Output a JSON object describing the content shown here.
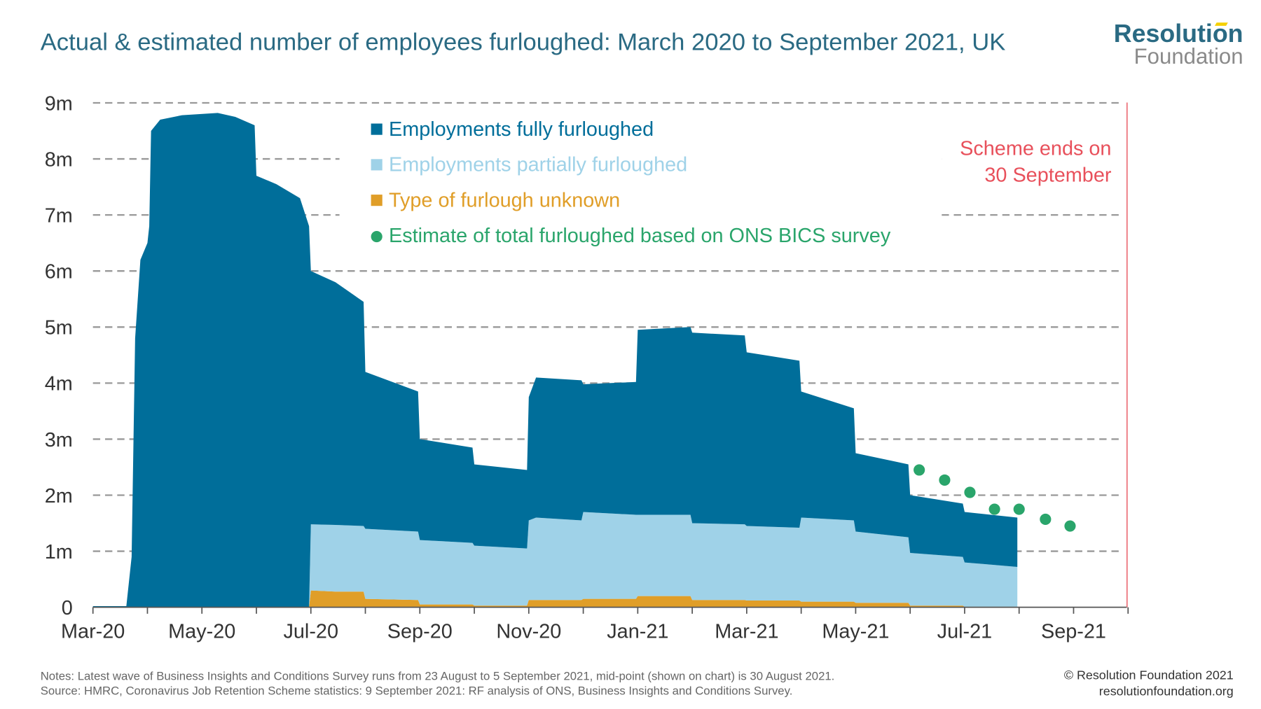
{
  "title": "Actual & estimated number of employees furloughed: March 2020 to September 2021, UK",
  "logo": {
    "line1": "Resolution",
    "line2": "Foundation"
  },
  "notes": "Notes: Latest wave of Business Insights and Conditions Survey runs from 23 August to 5 September 2021, mid-point (shown on chart) is 30 August 2021.",
  "source": "Source: HMRC, Coronavirus Job Retention Scheme statistics: 9 September 2021: RF analysis of ONS, Business Insights and Conditions Survey.",
  "copyright": "© Resolution Foundation 2021",
  "website": "resolutionfoundation.org",
  "chart_data": {
    "type": "area",
    "stacked": true,
    "title": "Actual & estimated number of employees furloughed: March 2020 to September 2021, UK",
    "xlabel": "",
    "ylabel": "",
    "ylim": [
      0,
      9
    ],
    "xlim": [
      "2020-03-01",
      "2021-10-01"
    ],
    "yticks": [
      "0",
      "1m",
      "2m",
      "3m",
      "4m",
      "5m",
      "6m",
      "7m",
      "8m",
      "9m"
    ],
    "xticks": [
      "Mar-20",
      "May-20",
      "Jul-20",
      "Sep-20",
      "Nov-20",
      "Jan-21",
      "Mar-21",
      "May-21",
      "Jul-21",
      "Sep-21"
    ],
    "grid": true,
    "legend_position": "top-center",
    "colors": {
      "full": "#006e9a",
      "partial": "#9fd2e8",
      "unknown": "#e09e28",
      "estimate": "#2aa56b",
      "scheme_end": "#e8505b"
    },
    "dates": [
      "2020-03-01",
      "2020-03-20",
      "2020-03-23",
      "2020-03-25",
      "2020-03-28",
      "2020-04-01",
      "2020-04-02",
      "2020-04-03",
      "2020-04-08",
      "2020-04-20",
      "2020-05-10",
      "2020-05-20",
      "2020-05-31",
      "2020-06-01",
      "2020-06-12",
      "2020-06-25",
      "2020-06-30",
      "2020-07-01",
      "2020-07-15",
      "2020-07-31",
      "2020-08-01",
      "2020-08-31",
      "2020-09-01",
      "2020-09-30",
      "2020-10-01",
      "2020-10-31",
      "2020-11-01",
      "2020-11-05",
      "2020-11-30",
      "2020-12-01",
      "2020-12-31",
      "2021-01-01",
      "2021-01-31",
      "2021-02-01",
      "2021-02-28",
      "2021-03-01",
      "2021-03-31",
      "2021-04-01",
      "2021-04-30",
      "2021-05-01",
      "2021-05-31",
      "2021-06-01",
      "2021-06-30",
      "2021-07-01",
      "2021-07-31"
    ],
    "series": [
      {
        "name": "Type of furlough unknown",
        "key": "unknown",
        "values": [
          0,
          0,
          0,
          0,
          0,
          0,
          0,
          0,
          0,
          0,
          0,
          0,
          0,
          0,
          0,
          0,
          0,
          0.3,
          0.28,
          0.28,
          0.15,
          0.13,
          0.05,
          0.05,
          0.03,
          0.03,
          0.13,
          0.13,
          0.13,
          0.15,
          0.15,
          0.2,
          0.2,
          0.13,
          0.13,
          0.12,
          0.12,
          0.1,
          0.1,
          0.08,
          0.08,
          0.03,
          0.03,
          0.01,
          0.01
        ]
      },
      {
        "name": "Employments partially furloughed",
        "key": "partial",
        "values": [
          0,
          0,
          0,
          0,
          0,
          0,
          0,
          0,
          0,
          0,
          0,
          0,
          0,
          0,
          0,
          0,
          0,
          1.18,
          1.19,
          1.17,
          1.25,
          1.22,
          1.15,
          1.1,
          1.07,
          1.02,
          1.42,
          1.47,
          1.42,
          1.55,
          1.5,
          1.45,
          1.45,
          1.37,
          1.35,
          1.33,
          1.3,
          1.5,
          1.45,
          1.27,
          1.17,
          0.94,
          0.87,
          0.79,
          0.71
        ]
      },
      {
        "name": "Employments fully furloughed",
        "key": "full",
        "values": [
          0.02,
          0.02,
          0.9,
          4.8,
          6.2,
          6.5,
          6.8,
          8.5,
          8.7,
          8.78,
          8.82,
          8.75,
          8.6,
          7.7,
          7.55,
          7.3,
          6.8,
          4.52,
          4.33,
          4.0,
          2.8,
          2.5,
          1.8,
          1.7,
          1.45,
          1.4,
          2.2,
          2.5,
          2.5,
          2.28,
          2.37,
          3.3,
          3.35,
          3.4,
          3.37,
          3.1,
          2.98,
          2.25,
          2.0,
          1.4,
          1.3,
          1.03,
          0.95,
          0.9,
          0.88
        ]
      }
    ],
    "estimate": {
      "name": "Estimate of total furloughed based on ONS BICS survey",
      "dates": [
        "2021-06-06",
        "2021-06-20",
        "2021-07-04",
        "2021-07-18",
        "2021-08-01",
        "2021-08-16",
        "2021-08-30"
      ],
      "values": [
        2.45,
        2.27,
        2.05,
        1.75,
        1.75,
        1.57,
        1.45
      ]
    },
    "legend": [
      "Employments fully furloughed",
      "Employments partially furloughed",
      "Type of furlough unknown",
      "Estimate of total furloughed based on ONS BICS survey"
    ],
    "annotation": {
      "line1": "Scheme ends on",
      "line2": "30 September",
      "date": "2021-09-30"
    }
  }
}
